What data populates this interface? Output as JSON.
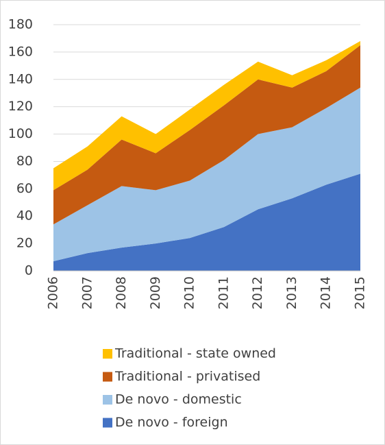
{
  "chart_data": {
    "type": "stacked_area",
    "categories": [
      "2006",
      "2007",
      "2008",
      "2009",
      "2010",
      "2011",
      "2012",
      "2013",
      "2014",
      "2015"
    ],
    "series": [
      {
        "name": "De novo - foreign",
        "color": "#4472C4",
        "values": [
          7,
          13,
          17,
          20,
          24,
          32,
          45,
          53,
          63,
          71
        ]
      },
      {
        "name": "De novo - domestic",
        "color": "#9DC3E6",
        "values": [
          27,
          35,
          45,
          39,
          42,
          49,
          55,
          52,
          56,
          63
        ]
      },
      {
        "name": "Traditional - privatised",
        "color": "#C55A11",
        "values": [
          25,
          26,
          34,
          27,
          37,
          40,
          40,
          29,
          27,
          31
        ]
      },
      {
        "name": "Traditional - state owned",
        "color": "#FFC000",
        "values": [
          16,
          17,
          17,
          14,
          15,
          15,
          13,
          9,
          8,
          3
        ]
      }
    ],
    "ylim": [
      0,
      180
    ],
    "yticks": [
      0,
      20,
      40,
      60,
      80,
      100,
      120,
      140,
      160,
      180
    ],
    "grid": true
  }
}
